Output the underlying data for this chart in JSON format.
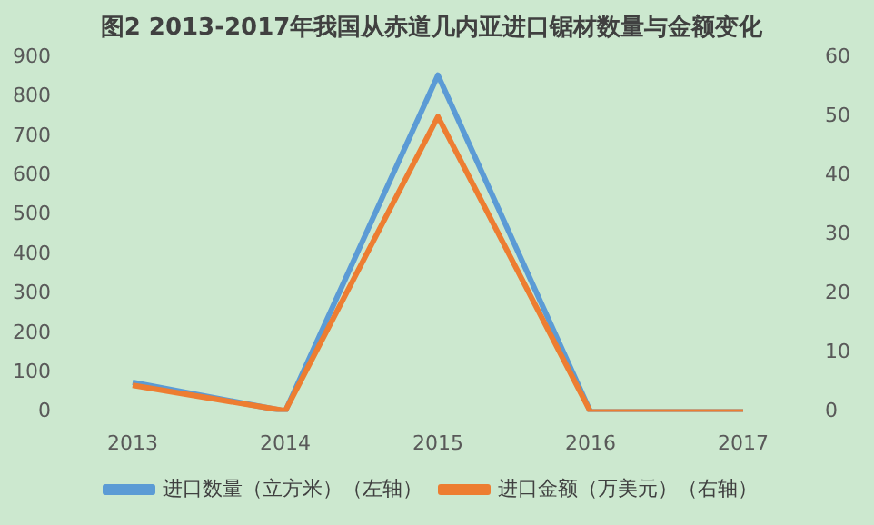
{
  "chart_data": {
    "type": "line",
    "title": "图2 2013-2017年我国从赤道几内亚进口锯材数量与金额变化",
    "categories": [
      "2013",
      "2014",
      "2015",
      "2016",
      "2017"
    ],
    "series": [
      {
        "name": "进口数量（立方米）（左轴）",
        "color": "#5b9bd5",
        "values": [
          75,
          2,
          855,
          0,
          0
        ]
      },
      {
        "name": "进口金额（万美元）（右轴）",
        "color": "#ed7d31",
        "values": [
          4.5,
          0.2,
          50,
          0,
          0
        ],
        "axis": "y2"
      }
    ],
    "ylim": [
      0,
      900
    ],
    "yticks": [
      0,
      100,
      200,
      300,
      400,
      500,
      600,
      700,
      800,
      900
    ],
    "y2lim": [
      0,
      60
    ],
    "y2ticks": [
      0,
      10,
      20,
      30,
      40,
      50,
      60
    ],
    "grid": false,
    "legend": "bottom",
    "marker": "none",
    "line_style": "solid"
  }
}
